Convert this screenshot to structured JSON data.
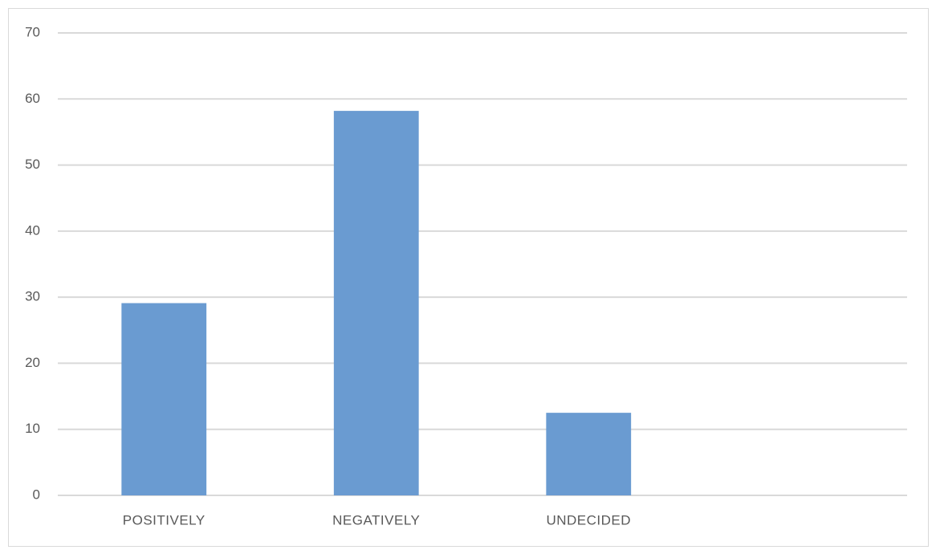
{
  "chart_data": {
    "type": "bar",
    "categories": [
      "POSITIVELY",
      "NEGATIVELY",
      "UNDECIDED",
      null
    ],
    "values": [
      29.1,
      58.2,
      12.5,
      null
    ],
    "color": "#6a9bd1",
    "ylim": [
      0,
      70
    ],
    "yticks": [
      0,
      10,
      20,
      30,
      40,
      50,
      60,
      70
    ],
    "grid": true
  }
}
